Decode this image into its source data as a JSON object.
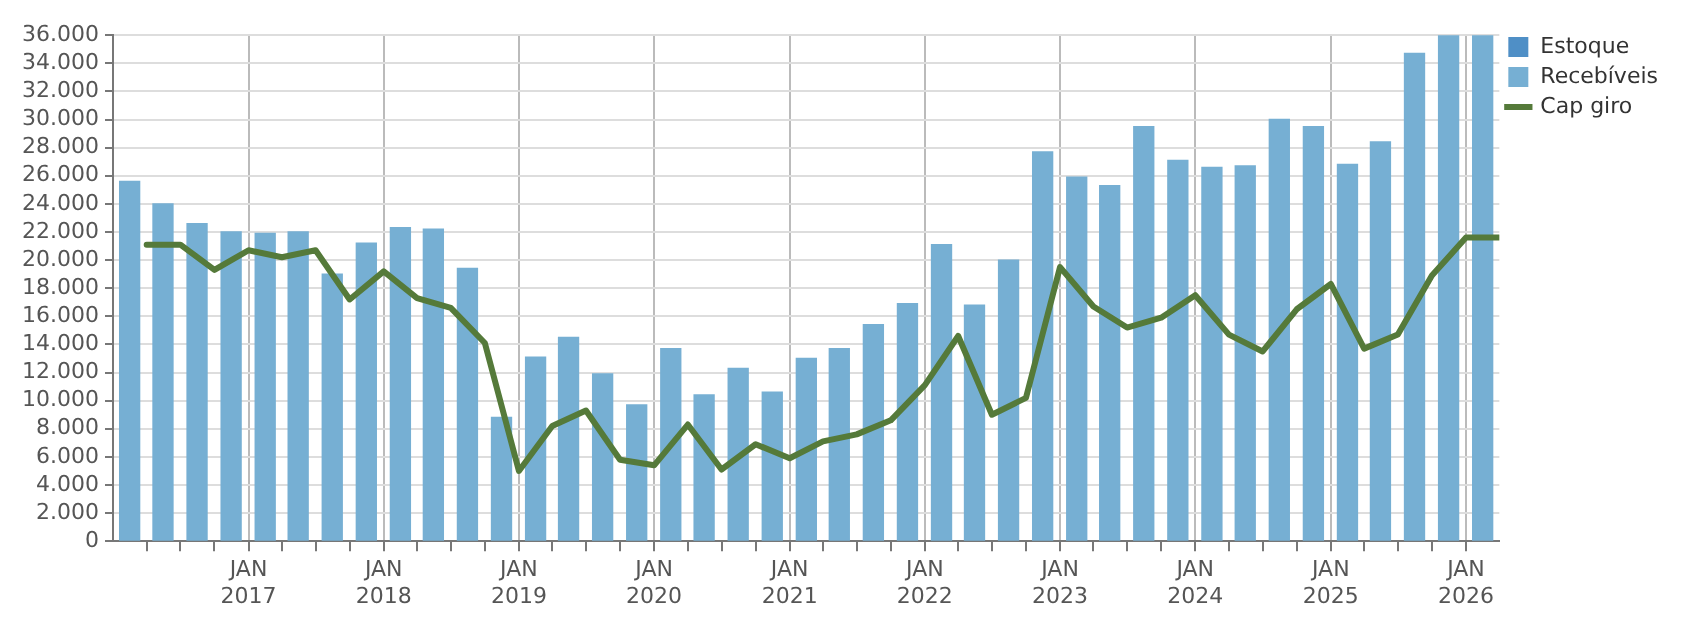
{
  "chart_data": {
    "type": "bar",
    "xlim": [
      "2016-01-01",
      "2026-04-01"
    ],
    "xticks": [
      {
        "value": "2016-04-01",
        "label": null
      },
      {
        "value": "2016-07-01",
        "label": null
      },
      {
        "value": "2016-10-01",
        "label": null
      },
      {
        "value": "2017-01-01",
        "label": "JAN 2017"
      },
      {
        "value": "2017-04-01",
        "label": null
      },
      {
        "value": "2017-07-01",
        "label": null
      },
      {
        "value": "2017-10-01",
        "label": null
      },
      {
        "value": "2018-01-01",
        "label": "JAN 2018"
      },
      {
        "value": "2018-04-01",
        "label": null
      },
      {
        "value": "2018-07-01",
        "label": null
      },
      {
        "value": "2018-10-01",
        "label": null
      },
      {
        "value": "2019-01-01",
        "label": "JAN 2019"
      },
      {
        "value": "2019-04-01",
        "label": null
      },
      {
        "value": "2019-07-01",
        "label": null
      },
      {
        "value": "2019-10-01",
        "label": null
      },
      {
        "value": "2020-01-01",
        "label": "JAN 2020"
      },
      {
        "value": "2020-04-01",
        "label": null
      },
      {
        "value": "2020-07-01",
        "label": null
      },
      {
        "value": "2020-10-01",
        "label": null
      },
      {
        "value": "2021-01-01",
        "label": "JAN 2021"
      },
      {
        "value": "2021-04-01",
        "label": null
      },
      {
        "value": "2021-07-01",
        "label": null
      },
      {
        "value": "2021-10-01",
        "label": null
      },
      {
        "value": "2022-01-01",
        "label": "JAN 2022"
      },
      {
        "value": "2022-04-01",
        "label": null
      },
      {
        "value": "2022-07-01",
        "label": null
      },
      {
        "value": "2022-10-01",
        "label": null
      },
      {
        "value": "2023-01-01",
        "label": "JAN 2023"
      },
      {
        "value": "2023-04-01",
        "label": null
      },
      {
        "value": "2023-07-01",
        "label": null
      },
      {
        "value": "2023-10-01",
        "label": null
      },
      {
        "value": "2024-01-01",
        "label": "JAN 2024"
      },
      {
        "value": "2024-04-01",
        "label": null
      },
      {
        "value": "2024-07-01",
        "label": null
      },
      {
        "value": "2024-10-01",
        "label": null
      },
      {
        "value": "2025-01-01",
        "label": "JAN 2025"
      },
      {
        "value": "2025-04-01",
        "label": null
      },
      {
        "value": "2025-07-01",
        "label": null
      },
      {
        "value": "2025-10-01",
        "label": null
      },
      {
        "value": "2026-01-01",
        "label": "JAN 2026"
      }
    ],
    "ylim": [
      0,
      36000
    ],
    "yticks": [
      {
        "value": 0,
        "label": "0"
      },
      {
        "value": 2000,
        "label": "2.000"
      },
      {
        "value": 4000,
        "label": "4.000"
      },
      {
        "value": 6000,
        "label": "6.000"
      },
      {
        "value": 8000,
        "label": "8.000"
      },
      {
        "value": 10000,
        "label": "10.000"
      },
      {
        "value": 12000,
        "label": "12.000"
      },
      {
        "value": 14000,
        "label": "14.000"
      },
      {
        "value": 16000,
        "label": "16.000"
      },
      {
        "value": 18000,
        "label": "18.000"
      },
      {
        "value": 20000,
        "label": "20.000"
      },
      {
        "value": 22000,
        "label": "22.000"
      },
      {
        "value": 24000,
        "label": "24.000"
      },
      {
        "value": 26000,
        "label": "26.000"
      },
      {
        "value": 28000,
        "label": "28.000"
      },
      {
        "value": 30000,
        "label": "30.000"
      },
      {
        "value": 32000,
        "label": "32.000"
      },
      {
        "value": 34000,
        "label": "34.000"
      },
      {
        "value": 36000,
        "label": "36.000"
      }
    ],
    "grid": true,
    "legend": "right",
    "series": [
      {
        "name": "Estoque",
        "color": "#4f8fc6"
      },
      {
        "name": "Recebíveis",
        "color": "#76afd3",
        "x": [
          "2016-02-15",
          "2016-05-15",
          "2016-08-15",
          "2016-11-15",
          "2017-02-15",
          "2017-05-15",
          "2017-08-15",
          "2017-11-15",
          "2018-02-15",
          "2018-05-15",
          "2018-08-15",
          "2018-11-15",
          "2019-02-15",
          "2019-05-15",
          "2019-08-15",
          "2019-11-15",
          "2020-02-15",
          "2020-05-15",
          "2020-08-15",
          "2020-11-15",
          "2021-02-15",
          "2021-05-15",
          "2021-08-15",
          "2021-11-15",
          "2022-02-15",
          "2022-05-15",
          "2022-08-15",
          "2022-11-15",
          "2023-02-15",
          "2023-05-15",
          "2023-08-15",
          "2023-11-15",
          "2024-02-15",
          "2024-05-15",
          "2024-08-15",
          "2024-11-15",
          "2025-02-15",
          "2025-05-15",
          "2025-08-15",
          "2025-11-15",
          "2026-02-15"
        ],
        "values": [
          25600,
          24000,
          22600,
          22000,
          21900,
          22000,
          19000,
          21200,
          22300,
          22200,
          19400,
          8800,
          13100,
          14500,
          11900,
          9700,
          13700,
          10400,
          12300,
          10600,
          13000,
          13700,
          15400,
          16900,
          21100,
          16800,
          20000,
          27700,
          25900,
          25300,
          29500,
          27100,
          26600,
          26700,
          30000,
          29500,
          26800,
          28400,
          34700,
          36000,
          36000
        ]
      },
      {
        "name": "Cap giro",
        "type": "line",
        "color": "#557a3a",
        "marker": "none",
        "line_style": "solid",
        "x": [
          "2016-04-01",
          "2016-07-01",
          "2016-10-01",
          "2017-01-01",
          "2017-04-01",
          "2017-07-01",
          "2017-10-01",
          "2018-01-01",
          "2018-04-01",
          "2018-07-01",
          "2018-10-01",
          "2019-01-01",
          "2019-04-01",
          "2019-07-01",
          "2019-10-01",
          "2020-01-01",
          "2020-04-01",
          "2020-07-01",
          "2020-10-01",
          "2021-01-01",
          "2021-04-01",
          "2021-07-01",
          "2021-10-01",
          "2022-01-01",
          "2022-04-01",
          "2022-07-01",
          "2022-10-01",
          "2023-01-01",
          "2023-04-01",
          "2023-07-01",
          "2023-10-01",
          "2024-01-01",
          "2024-04-01",
          "2024-07-01",
          "2024-10-01",
          "2025-01-01",
          "2025-04-01",
          "2025-07-01",
          "2025-10-01",
          "2026-01-01",
          "2026-04-01"
        ],
        "values": [
          21100,
          21100,
          19300,
          20700,
          20200,
          20700,
          17200,
          19200,
          17300,
          16600,
          14100,
          5000,
          8200,
          9300,
          5800,
          5400,
          8300,
          5100,
          6900,
          5900,
          7100,
          7600,
          8600,
          11100,
          14600,
          9000,
          10200,
          19500,
          16700,
          15200,
          15900,
          17500,
          14700,
          13500,
          16500,
          18300,
          13700,
          14700,
          18900,
          21600,
          21600
        ]
      }
    ]
  }
}
